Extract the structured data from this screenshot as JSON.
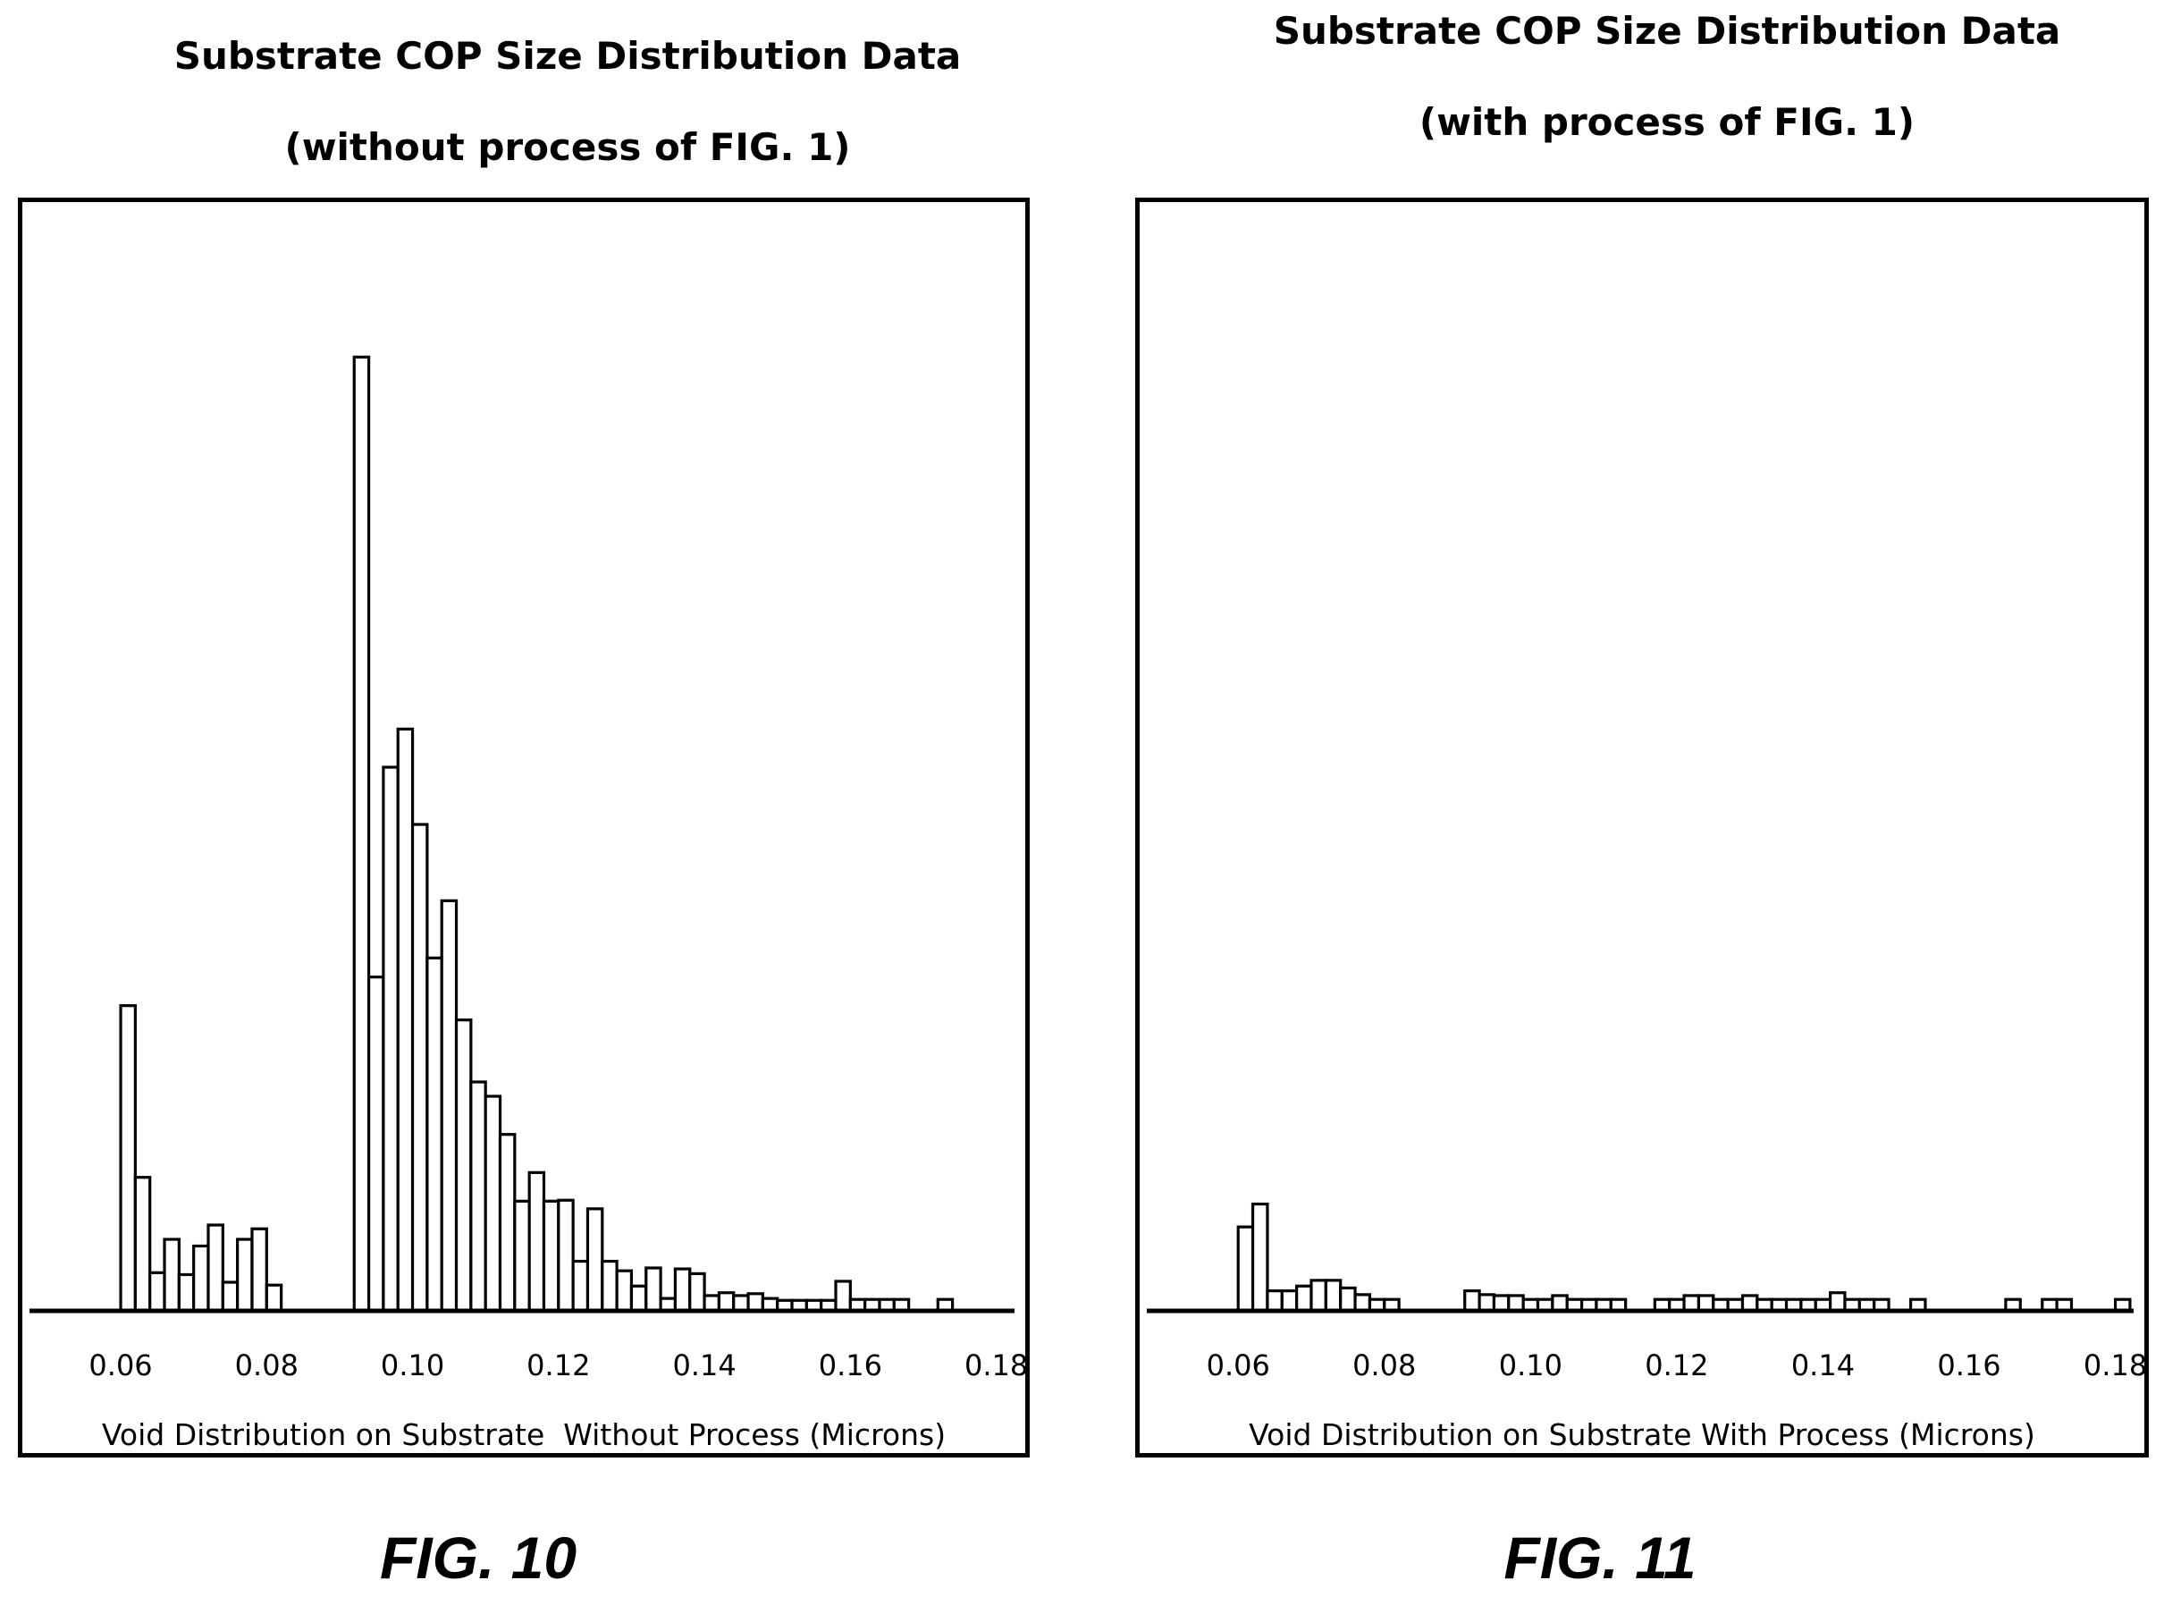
{
  "chart_data": [
    {
      "type": "bar",
      "title": "Substrate COP Size Distribution Data",
      "subtitle": "(without process of FIG. 1)",
      "xlabel": "Void Distribution on Substrate  Without Process (Microns)",
      "ylabel": "",
      "figure_label": "FIG. 10",
      "x_ticks": [
        "0.06",
        "0.08",
        "0.10",
        "0.12",
        "0.14",
        "0.16",
        "0.18"
      ],
      "xlim": [
        0.0475,
        0.1825
      ],
      "ylim": [
        0,
        105
      ],
      "bin_width": 0.002,
      "grid": false,
      "x": [
        0.06,
        0.062,
        0.064,
        0.066,
        0.068,
        0.07,
        0.072,
        0.074,
        0.076,
        0.078,
        0.08,
        0.092,
        0.094,
        0.096,
        0.098,
        0.1,
        0.102,
        0.104,
        0.106,
        0.108,
        0.11,
        0.112,
        0.114,
        0.116,
        0.118,
        0.12,
        0.122,
        0.124,
        0.126,
        0.128,
        0.13,
        0.132,
        0.134,
        0.136,
        0.138,
        0.14,
        0.142,
        0.144,
        0.146,
        0.148,
        0.15,
        0.152,
        0.154,
        0.156,
        0.158,
        0.16,
        0.162,
        0.164,
        0.166,
        0.172
      ],
      "values": [
        32,
        14,
        4,
        7.5,
        3.8,
        6.8,
        9,
        3,
        7.5,
        8.6,
        2.7,
        100,
        35,
        57,
        61,
        51,
        37,
        43,
        30.5,
        24,
        22.5,
        18.5,
        11.5,
        14.5,
        11.5,
        11.6,
        5.2,
        10.7,
        5.2,
        4.2,
        2.6,
        4.5,
        1.3,
        4.4,
        3.9,
        1.6,
        1.9,
        1.6,
        1.8,
        1.3,
        1.1,
        1.1,
        1.1,
        1.1,
        3.1,
        1.2,
        1.2,
        1.2,
        1.2,
        1.2
      ]
    },
    {
      "type": "bar",
      "title": "Substrate  COP Size Distribution Data",
      "subtitle": "(with process of FIG. 1)",
      "xlabel": "Void Distribution on Substrate With Process (Microns)",
      "ylabel": "",
      "figure_label": "FIG. 11",
      "x_ticks": [
        "0.06",
        "0.08",
        "0.10",
        "0.12",
        "0.14",
        "0.16",
        "0.18"
      ],
      "xlim": [
        0.0475,
        0.1825
      ],
      "ylim": [
        0,
        105
      ],
      "bin_width": 0.002,
      "grid": false,
      "x": [
        0.06,
        0.062,
        0.064,
        0.066,
        0.068,
        0.07,
        0.072,
        0.074,
        0.076,
        0.078,
        0.08,
        0.091,
        0.093,
        0.095,
        0.097,
        0.099,
        0.101,
        0.103,
        0.105,
        0.107,
        0.109,
        0.111,
        0.117,
        0.119,
        0.121,
        0.123,
        0.125,
        0.127,
        0.129,
        0.131,
        0.133,
        0.135,
        0.137,
        0.139,
        0.141,
        0.143,
        0.145,
        0.147,
        0.152,
        0.165,
        0.17,
        0.172,
        0.18
      ],
      "values": [
        8.8,
        11.2,
        2.1,
        2.1,
        2.6,
        3.2,
        3.2,
        2.4,
        1.7,
        1.2,
        1.2,
        2.1,
        1.7,
        1.6,
        1.6,
        1.2,
        1.2,
        1.6,
        1.2,
        1.2,
        1.2,
        1.2,
        1.2,
        1.2,
        1.6,
        1.6,
        1.2,
        1.2,
        1.6,
        1.2,
        1.2,
        1.2,
        1.2,
        1.2,
        1.9,
        1.2,
        1.2,
        1.2,
        1.2,
        1.2,
        1.2,
        1.2,
        1.2
      ]
    }
  ]
}
